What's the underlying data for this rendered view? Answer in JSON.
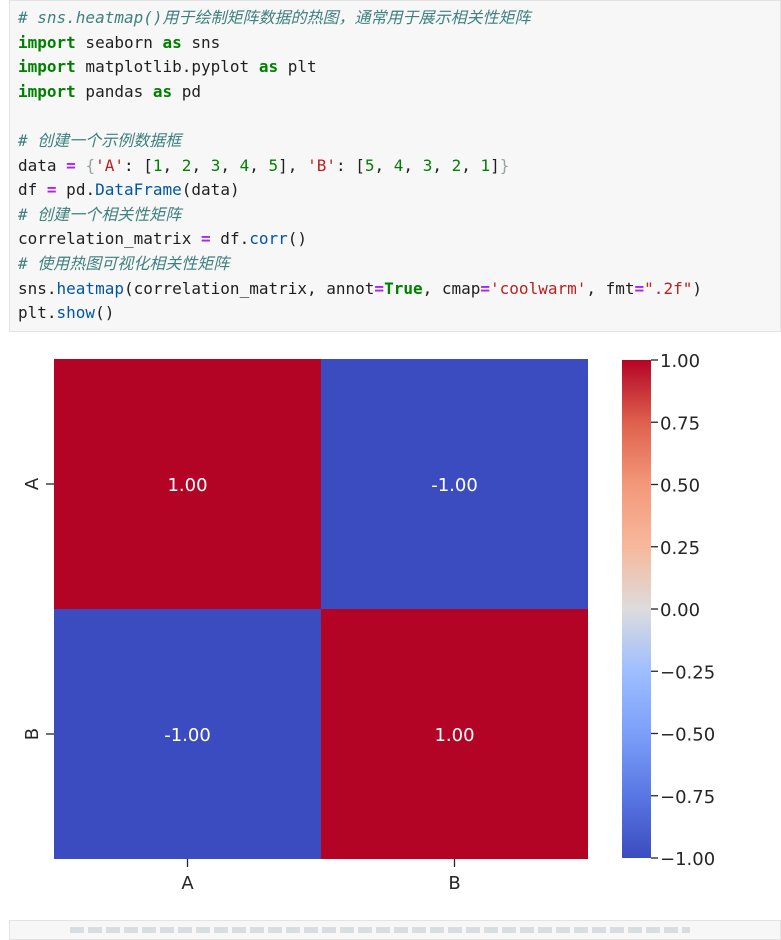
{
  "code_cell": {
    "lines": [
      [
        {
          "t": "# sns.heatmap()用于绘制矩阵数据的热图，通常用于展示相关性矩阵",
          "c": "com"
        }
      ],
      [
        {
          "t": "import",
          "c": "kw"
        },
        {
          "t": " seaborn ",
          "c": ""
        },
        {
          "t": "as",
          "c": "kw"
        },
        {
          "t": " sns",
          "c": ""
        }
      ],
      [
        {
          "t": "import",
          "c": "kw"
        },
        {
          "t": " matplotlib.pyplot ",
          "c": ""
        },
        {
          "t": "as",
          "c": "kw"
        },
        {
          "t": " plt",
          "c": ""
        }
      ],
      [
        {
          "t": "import",
          "c": "kw"
        },
        {
          "t": " pandas ",
          "c": ""
        },
        {
          "t": "as",
          "c": "kw"
        },
        {
          "t": " pd",
          "c": ""
        }
      ],
      [],
      [
        {
          "t": "# 创建一个示例数据框",
          "c": "com"
        }
      ],
      [
        {
          "t": "data ",
          "c": ""
        },
        {
          "t": "=",
          "c": "op"
        },
        {
          "t": " {",
          "c": "br"
        },
        {
          "t": "'A'",
          "c": "str"
        },
        {
          "t": ": [",
          "c": ""
        },
        {
          "t": "1",
          "c": "num"
        },
        {
          "t": ", ",
          "c": ""
        },
        {
          "t": "2",
          "c": "num"
        },
        {
          "t": ", ",
          "c": ""
        },
        {
          "t": "3",
          "c": "num"
        },
        {
          "t": ", ",
          "c": ""
        },
        {
          "t": "4",
          "c": "num"
        },
        {
          "t": ", ",
          "c": ""
        },
        {
          "t": "5",
          "c": "num"
        },
        {
          "t": "], ",
          "c": ""
        },
        {
          "t": "'B'",
          "c": "str"
        },
        {
          "t": ": [",
          "c": ""
        },
        {
          "t": "5",
          "c": "num"
        },
        {
          "t": ", ",
          "c": ""
        },
        {
          "t": "4",
          "c": "num"
        },
        {
          "t": ", ",
          "c": ""
        },
        {
          "t": "3",
          "c": "num"
        },
        {
          "t": ", ",
          "c": ""
        },
        {
          "t": "2",
          "c": "num"
        },
        {
          "t": ", ",
          "c": ""
        },
        {
          "t": "1",
          "c": "num"
        },
        {
          "t": "]",
          "c": ""
        },
        {
          "t": "}",
          "c": "br"
        }
      ],
      [
        {
          "t": "df ",
          "c": ""
        },
        {
          "t": "=",
          "c": "op"
        },
        {
          "t": " pd.",
          "c": ""
        },
        {
          "t": "DataFrame",
          "c": "fn"
        },
        {
          "t": "(data)",
          "c": ""
        }
      ],
      [
        {
          "t": "# 创建一个相关性矩阵",
          "c": "com"
        }
      ],
      [
        {
          "t": "correlation_matrix ",
          "c": ""
        },
        {
          "t": "=",
          "c": "op"
        },
        {
          "t": " df.",
          "c": ""
        },
        {
          "t": "corr",
          "c": "fn"
        },
        {
          "t": "()",
          "c": ""
        }
      ],
      [
        {
          "t": "# 使用热图可视化相关性矩阵",
          "c": "com"
        }
      ],
      [
        {
          "t": "sns.",
          "c": ""
        },
        {
          "t": "heatmap",
          "c": "fn"
        },
        {
          "t": "(correlation_matrix, annot",
          "c": ""
        },
        {
          "t": "=",
          "c": "op"
        },
        {
          "t": "True",
          "c": "tr"
        },
        {
          "t": ", cmap",
          "c": ""
        },
        {
          "t": "=",
          "c": "op"
        },
        {
          "t": "'coolwarm'",
          "c": "str"
        },
        {
          "t": ", fmt",
          "c": ""
        },
        {
          "t": "=",
          "c": "op"
        },
        {
          "t": "\".2f\"",
          "c": "str"
        },
        {
          "t": ")",
          "c": ""
        }
      ],
      [
        {
          "t": "plt.",
          "c": ""
        },
        {
          "t": "show",
          "c": "fn"
        },
        {
          "t": "()",
          "c": ""
        }
      ]
    ]
  },
  "chart_data": {
    "type": "heatmap",
    "rows": [
      "A",
      "B"
    ],
    "cols": [
      "A",
      "B"
    ],
    "values": [
      [
        1.0,
        -1.0
      ],
      [
        -1.0,
        1.0
      ]
    ],
    "annotations": [
      [
        "1.00",
        "-1.00"
      ],
      [
        "-1.00",
        "1.00"
      ]
    ],
    "colormap": "coolwarm",
    "vmin": -1.0,
    "vmax": 1.0,
    "colorbar_ticks": [
      1.0,
      0.75,
      0.5,
      0.25,
      0.0,
      -0.25,
      -0.5,
      -0.75,
      -1.0
    ],
    "colorbar_labels": [
      "1.00",
      "0.75",
      "0.50",
      "0.25",
      "0.00",
      "−0.25",
      "−0.50",
      "−0.75",
      "−1.00"
    ],
    "colors": {
      "high": "#b40426",
      "low": "#3b4cc0",
      "annot_text": "#ffffff"
    }
  }
}
